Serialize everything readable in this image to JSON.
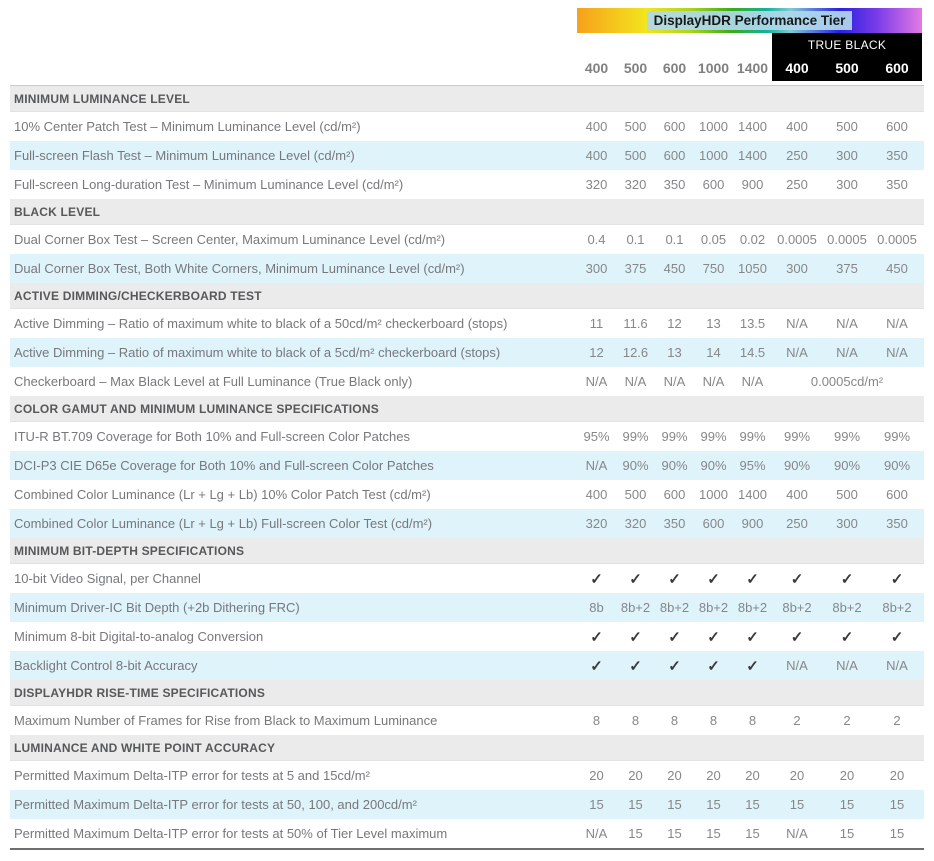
{
  "header": {
    "gradient_label": "DisplayHDR Performance Tier",
    "true_black_label": "TRUE BLACK",
    "tiers": [
      "400",
      "500",
      "600",
      "1000",
      "1400"
    ],
    "true_black_tiers": [
      "400",
      "500",
      "600"
    ],
    "accent_colors": {
      "gradient_start": "#f7a11b",
      "gradient_mid_green": "#3aaa1a",
      "gradient_blue": "#2a20e0",
      "gradient_end": "#e47ae4",
      "label_bg": "#b0d8ec",
      "true_black_bg": "#000000",
      "row_alt_bg": "#dff3fb",
      "section_bg": "#ebebeb"
    }
  },
  "sections": [
    {
      "title": "MINIMUM LUMINANCE LEVEL",
      "rows": [
        {
          "label": "10% Center Patch Test – Minimum Luminance Level (cd/m²)",
          "values": [
            "400",
            "500",
            "600",
            "1000",
            "1400",
            "400",
            "500",
            "600"
          ]
        },
        {
          "label": "Full-screen Flash Test – Minimum Luminance Level (cd/m²)",
          "values": [
            "400",
            "500",
            "600",
            "1000",
            "1400",
            "250",
            "300",
            "350"
          ]
        },
        {
          "label": "Full-screen Long-duration Test – Minimum Luminance Level (cd/m²)",
          "values": [
            "320",
            "320",
            "350",
            "600",
            "900",
            "250",
            "300",
            "350"
          ]
        }
      ]
    },
    {
      "title": "BLACK LEVEL",
      "rows": [
        {
          "label": "Dual Corner Box Test – Screen Center, Maximum Luminance Level (cd/m²)",
          "values": [
            "0.4",
            "0.1",
            "0.1",
            "0.05",
            "0.02",
            "0.0005",
            "0.0005",
            "0.0005"
          ]
        },
        {
          "label": "Dual Corner Box Test, Both White Corners, Minimum Luminance Level (cd/m²)",
          "values": [
            "300",
            "375",
            "450",
            "750",
            "1050",
            "300",
            "375",
            "450"
          ]
        }
      ]
    },
    {
      "title": "ACTIVE DIMMING/CHECKERBOARD TEST",
      "rows": [
        {
          "label": "Active Dimming – Ratio of maximum white to black of a 50cd/m² checkerboard (stops)",
          "values": [
            "11",
            "11.6",
            "12",
            "13",
            "13.5",
            "N/A",
            "N/A",
            "N/A"
          ]
        },
        {
          "label": "Active Dimming – Ratio of maximum white to black of a 5cd/m² checkerboard (stops)",
          "values": [
            "12",
            "12.6",
            "13",
            "14",
            "14.5",
            "N/A",
            "N/A",
            "N/A"
          ]
        },
        {
          "label": "Checkerboard – Max Black Level at Full Luminance (True Black only)",
          "values": [
            "N/A",
            "N/A",
            "N/A",
            "N/A",
            "N/A"
          ],
          "merged": "0.0005cd/m²"
        }
      ]
    },
    {
      "title": "COLOR GAMUT AND MINIMUM LUMINANCE SPECIFICATIONS",
      "rows": [
        {
          "label": "ITU-R BT.709 Coverage for Both 10% and Full-screen Color Patches",
          "values": [
            "95%",
            "99%",
            "99%",
            "99%",
            "99%",
            "99%",
            "99%",
            "99%"
          ]
        },
        {
          "label": "DCI-P3 CIE D65e Coverage for Both 10% and Full-screen Color Patches",
          "values": [
            "N/A",
            "90%",
            "90%",
            "90%",
            "95%",
            "90%",
            "90%",
            "90%"
          ]
        },
        {
          "label": "Combined Color Luminance (Lr + Lg + Lb) 10% Color Patch Test (cd/m²)",
          "values": [
            "400",
            "500",
            "600",
            "1000",
            "1400",
            "400",
            "500",
            "600"
          ]
        },
        {
          "label": "Combined Color Luminance (Lr + Lg + Lb) Full-screen Color Test (cd/m²)",
          "values": [
            "320",
            "320",
            "350",
            "600",
            "900",
            "250",
            "300",
            "350"
          ]
        }
      ]
    },
    {
      "title": "MINIMUM BIT-DEPTH SPECIFICATIONS",
      "rows": [
        {
          "label": "10-bit Video Signal, per Channel",
          "values": [
            "✓",
            "✓",
            "✓",
            "✓",
            "✓",
            "✓",
            "✓",
            "✓"
          ]
        },
        {
          "label": "Minimum Driver-IC Bit Depth (+2b Dithering FRC)",
          "values": [
            "8b",
            "8b+2",
            "8b+2",
            "8b+2",
            "8b+2",
            "8b+2",
            "8b+2",
            "8b+2"
          ]
        },
        {
          "label": "Minimum 8-bit Digital-to-analog Conversion",
          "values": [
            "✓",
            "✓",
            "✓",
            "✓",
            "✓",
            "✓",
            "✓",
            "✓"
          ]
        },
        {
          "label": "Backlight Control 8-bit Accuracy",
          "values": [
            "✓",
            "✓",
            "✓",
            "✓",
            "✓",
            "N/A",
            "N/A",
            "N/A"
          ]
        }
      ]
    },
    {
      "title": "DISPLAYHDR RISE-TIME SPECIFICATIONS",
      "rows": [
        {
          "label": "Maximum Number of Frames for Rise from Black to Maximum Luminance",
          "values": [
            "8",
            "8",
            "8",
            "8",
            "8",
            "2",
            "2",
            "2"
          ]
        }
      ]
    },
    {
      "title": "LUMINANCE AND WHITE POINT ACCURACY",
      "rows": [
        {
          "label": "Permitted Maximum Delta-ITP error for tests at 5 and 15cd/m²",
          "values": [
            "20",
            "20",
            "20",
            "20",
            "20",
            "20",
            "20",
            "20"
          ]
        },
        {
          "label": "Permitted Maximum Delta-ITP error for tests at 50, 100, and 200cd/m²",
          "values": [
            "15",
            "15",
            "15",
            "15",
            "15",
            "15",
            "15",
            "15"
          ]
        },
        {
          "label": "Permitted Maximum Delta-ITP error for tests at 50% of Tier Level maximum",
          "values": [
            "N/A",
            "15",
            "15",
            "15",
            "15",
            "N/A",
            "15",
            "15"
          ]
        }
      ]
    }
  ]
}
